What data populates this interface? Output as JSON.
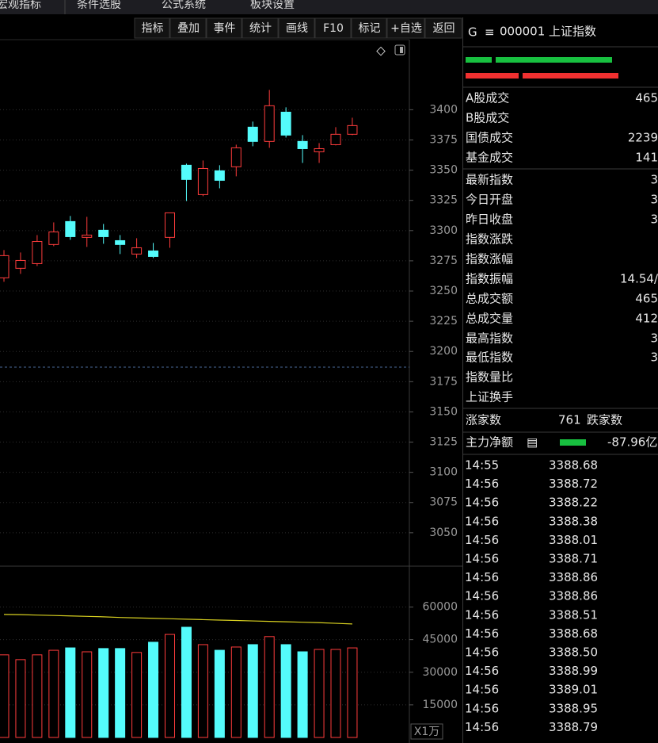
{
  "menu": [
    "宏观指标",
    "条件选股",
    "公式系统",
    "板块设置"
  ],
  "toolbar": [
    "指标",
    "叠加",
    "事件",
    "统计",
    "画线",
    "F10",
    "标记",
    "+自选",
    "返回"
  ],
  "chart_data": [
    {
      "type": "candlestick",
      "ylim": [
        3023,
        3458
      ],
      "yticks": [
        3050,
        3075,
        3100,
        3125,
        3150,
        3175,
        3200,
        3225,
        3250,
        3275,
        3300,
        3325,
        3350,
        3375,
        3400
      ],
      "grid": true,
      "reference_line": 3187,
      "up_color": "#ff3c3c",
      "down_color": "#54fcfc",
      "open": [
        3260.9,
        3268.8,
        3272.7,
        3288.5,
        3307.5,
        3294.4,
        3300.3,
        3291.7,
        3280.6,
        3283.2,
        3294.4,
        3354.1,
        3329.8,
        3349.5,
        3352.8,
        3385.6,
        3373.8,
        3398.0,
        3373.8,
        3365.2,
        3371.1,
        3379.7
      ],
      "close": [
        3279.3,
        3275.3,
        3291.0,
        3298.9,
        3295.0,
        3296.3,
        3295.0,
        3288.5,
        3285.8,
        3278.6,
        3314.7,
        3342.3,
        3351.4,
        3341.6,
        3368.5,
        3373.8,
        3403.3,
        3379.0,
        3367.8,
        3367.8,
        3379.7,
        3386.9
      ],
      "high": [
        3283.9,
        3281.9,
        3296.3,
        3306.8,
        3312.1,
        3311.4,
        3305.5,
        3296.3,
        3293.7,
        3289.8,
        3314.7,
        3355.4,
        3358.0,
        3354.1,
        3371.1,
        3390.2,
        3416.4,
        3402.0,
        3379.0,
        3372.4,
        3385.6,
        3393.4
      ],
      "low": [
        3257.6,
        3264.2,
        3270.7,
        3287.1,
        3292.4,
        3286.5,
        3289.1,
        3280.6,
        3277.3,
        3277.3,
        3285.8,
        3324.5,
        3328.5,
        3335.0,
        3344.9,
        3369.8,
        3368.5,
        3377.0,
        3356.0,
        3356.0,
        3370.5,
        3379.0
      ]
    },
    {
      "type": "bar",
      "ylim": [
        0,
        77700
      ],
      "yticks": [
        15000,
        30000,
        45000,
        60000
      ],
      "grid": true,
      "unit_label": "X1万",
      "values": [
        38000,
        35800,
        38000,
        40100,
        41200,
        39400,
        40900,
        40900,
        39100,
        43800,
        47400,
        50700,
        42700,
        40100,
        41600,
        42700,
        46400,
        42700,
        39400,
        40500,
        40500,
        41200
      ],
      "ma_color": "#d8d020",
      "ma_values": [
        56600,
        56500,
        56300,
        56100,
        55900,
        55700,
        55500,
        55200,
        55000,
        54800,
        54600,
        54400,
        54200,
        54000,
        53800,
        53600,
        53400,
        53200,
        53000,
        52800,
        52500,
        52200
      ]
    }
  ],
  "quote": {
    "flag": "G",
    "icon": "≡",
    "title": "000001 上证指数",
    "rows": [
      {
        "label": "A股成交",
        "value": "465",
        "color": "#e0d020"
      },
      {
        "label": "B股成交"
      },
      {
        "label": "国债成交",
        "value": "2239",
        "color": "#e0d020"
      },
      {
        "label": "基金成交",
        "value": "141",
        "color": "#e0d020"
      },
      {
        "label": "最新指数",
        "value": "3",
        "color": "#ff3c3c"
      },
      {
        "label": "今日开盘",
        "value": "3",
        "color": "#20d050"
      },
      {
        "label": "昨日收盘",
        "value": "3",
        "color": "#e8e8e8"
      },
      {
        "label": "指数涨跌"
      },
      {
        "label": "指数涨幅"
      },
      {
        "label": "指数振幅",
        "value": "14.54/",
        "color": "#e8e8e8"
      },
      {
        "label": "总成交额",
        "value": "465",
        "color": "#e0d020"
      },
      {
        "label": "总成交量",
        "value": "412",
        "color": "#e0d020"
      },
      {
        "label": "最高指数",
        "value": "3",
        "color": "#ff3c3c"
      },
      {
        "label": "最低指数",
        "value": "3",
        "color": "#20d050"
      },
      {
        "label": "指数量比"
      },
      {
        "label": "上证换手"
      }
    ]
  },
  "breadth": {
    "up_label": "涨家数",
    "up_count": 761,
    "down_label": "跌家数"
  },
  "main_net": {
    "label": "主力净额",
    "icon": "▤",
    "value": "-87.96亿"
  },
  "ticks": [
    [
      "14:55",
      "3388.68"
    ],
    [
      "14:56",
      "3388.72"
    ],
    [
      "14:56",
      "3388.22"
    ],
    [
      "14:56",
      "3388.38"
    ],
    [
      "14:56",
      "3388.01"
    ],
    [
      "14:56",
      "3388.71"
    ],
    [
      "14:56",
      "3388.86"
    ],
    [
      "14:56",
      "3388.86"
    ],
    [
      "14:56",
      "3388.51"
    ],
    [
      "14:56",
      "3388.68"
    ],
    [
      "14:56",
      "3388.50"
    ],
    [
      "14:56",
      "3388.99"
    ],
    [
      "14:56",
      "3389.01"
    ],
    [
      "14:56",
      "3388.95"
    ],
    [
      "14:56",
      "3388.79"
    ]
  ]
}
